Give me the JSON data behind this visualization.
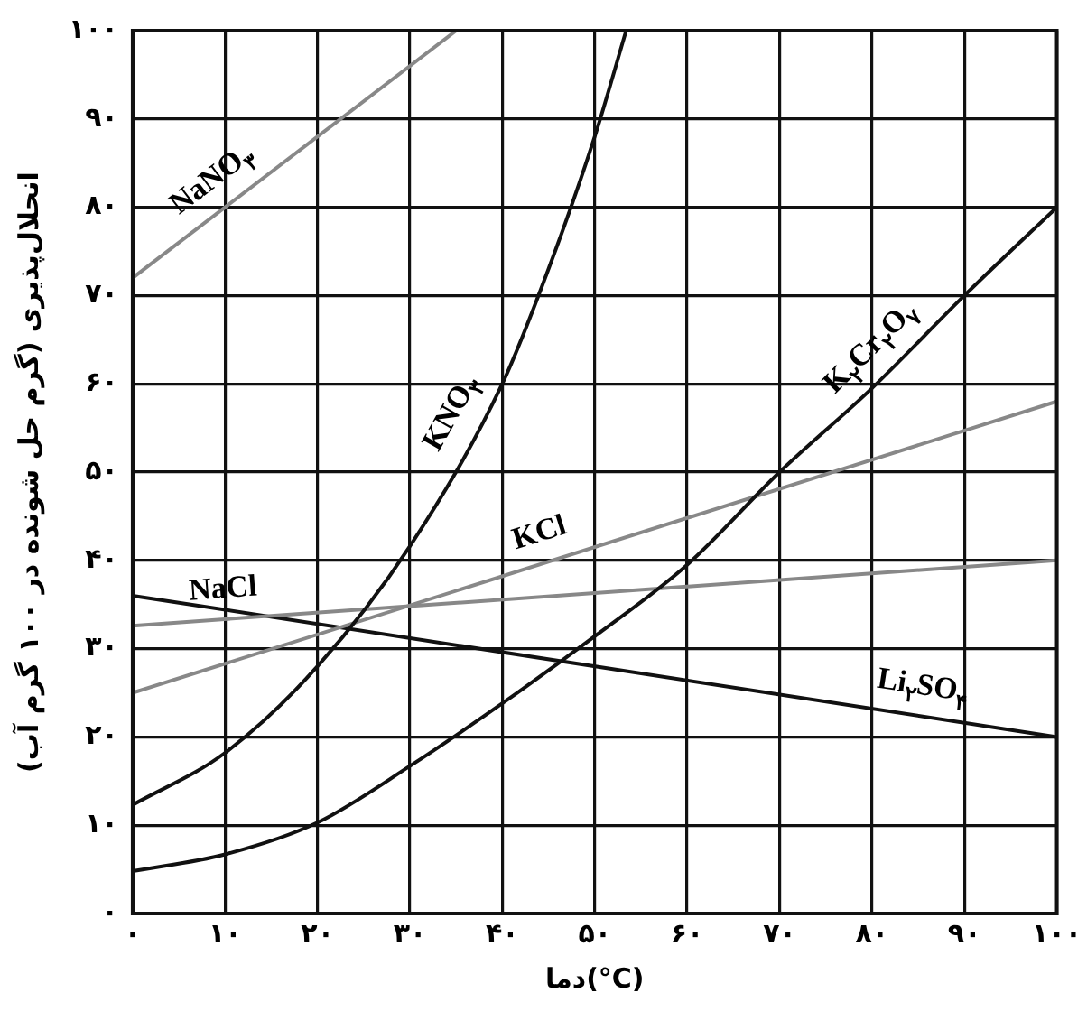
{
  "chart_data": {
    "type": "line",
    "xlabel": "دما(°C)",
    "ylabel": "انحلال‌پذیری (گرم حل شونده در ۱۰۰ گرم آب)",
    "xlim": [
      0,
      100
    ],
    "ylim": [
      0,
      100
    ],
    "xticks": [
      {
        "value": 0,
        "label": "۰"
      },
      {
        "value": 10,
        "label": "۱۰"
      },
      {
        "value": 20,
        "label": "۲۰"
      },
      {
        "value": 30,
        "label": "۳۰"
      },
      {
        "value": 40,
        "label": "۴۰"
      },
      {
        "value": 50,
        "label": "۵۰"
      },
      {
        "value": 60,
        "label": "۶۰"
      },
      {
        "value": 70,
        "label": "۷۰"
      },
      {
        "value": 80,
        "label": "۸۰"
      },
      {
        "value": 90,
        "label": "۹۰"
      },
      {
        "value": 100,
        "label": "۱۰۰"
      }
    ],
    "yticks": [
      {
        "value": 0,
        "label": "۰"
      },
      {
        "value": 10,
        "label": "۱۰"
      },
      {
        "value": 20,
        "label": "۲۰"
      },
      {
        "value": 30,
        "label": "۳۰"
      },
      {
        "value": 40,
        "label": "۴۰"
      },
      {
        "value": 50,
        "label": "۵۰"
      },
      {
        "value": 60,
        "label": "۶۰"
      },
      {
        "value": 70,
        "label": "۷۰"
      },
      {
        "value": 80,
        "label": "۸۰"
      },
      {
        "value": 90,
        "label": "۹۰"
      },
      {
        "value": 100,
        "label": "۱۰۰"
      }
    ],
    "grid": true,
    "legend": false,
    "series": [
      {
        "name": "NaNO$_{۳}$",
        "color": "#888888",
        "x": [
          0,
          35
        ],
        "values": [
          72,
          100
        ]
      },
      {
        "name": "KNO$_{۳}$",
        "color": "#111111",
        "x": [
          0,
          10,
          20,
          30,
          40,
          45,
          50,
          53.4
        ],
        "values": [
          12.3,
          18.2,
          28,
          41.6,
          60,
          73,
          88,
          100
        ]
      },
      {
        "name": "K$_{۲}$Cr$_{۲}$O$_{۷}$",
        "color": "#111111",
        "x": [
          0,
          10,
          20,
          30,
          40,
          50,
          60,
          70,
          80,
          90,
          100
        ],
        "values": [
          4.8,
          6.7,
          10.3,
          16.7,
          23.8,
          31.4,
          39.5,
          50,
          59.5,
          70,
          80
        ]
      },
      {
        "name": "KCl",
        "color": "#888888",
        "x": [
          0,
          100
        ],
        "values": [
          25,
          58
        ]
      },
      {
        "name": "NaCl",
        "color": "#888888",
        "x": [
          0,
          100
        ],
        "values": [
          32.6,
          40
        ]
      },
      {
        "name": "Li$_{۲}$SO$_{۴}$",
        "color": "#111111",
        "x": [
          0,
          100
        ],
        "values": [
          36,
          20
        ]
      }
    ]
  }
}
